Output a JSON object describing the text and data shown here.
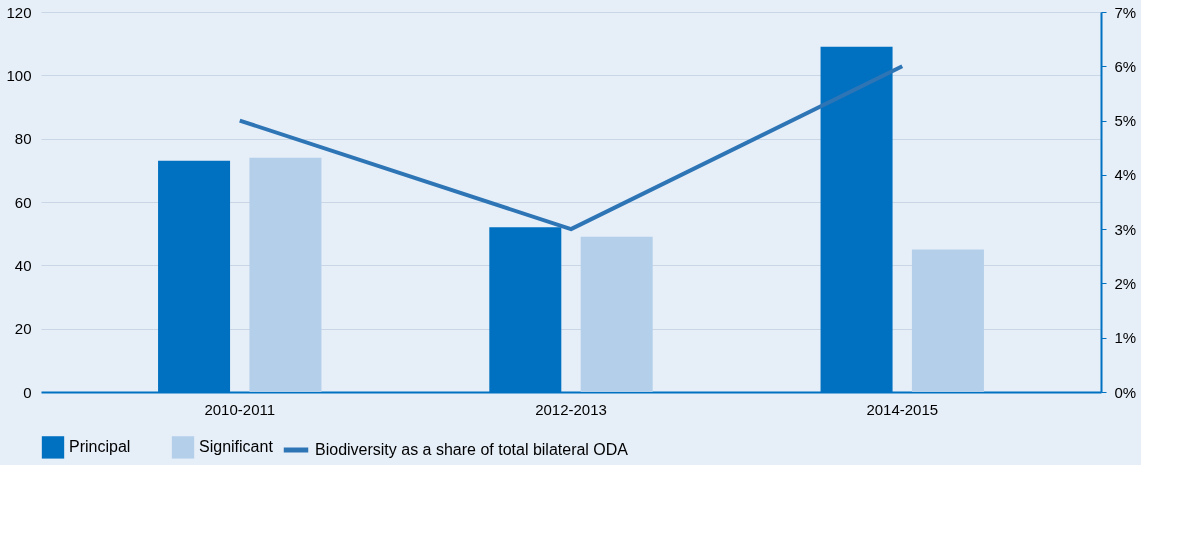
{
  "chart_data": {
    "type": "bar",
    "categories": [
      "2010-2011",
      "2012-2013",
      "2014-2015"
    ],
    "series": [
      {
        "name": "Principal",
        "color": "#0070c0",
        "values": [
          73,
          52,
          109
        ]
      },
      {
        "name": "Significant",
        "color": "#b4cfea",
        "values": [
          74,
          49,
          45
        ]
      },
      {
        "name": "Biodiversity as a share of total bilateral ODA",
        "type": "line",
        "axis": "y2",
        "color": "#2e75b6",
        "values": [
          5,
          3,
          6
        ]
      }
    ],
    "ylim": [
      0,
      120
    ],
    "yticks": [
      0,
      20,
      40,
      60,
      80,
      100,
      120
    ],
    "y2lim": [
      0,
      7
    ],
    "y2ticks": [
      {
        "value": 0,
        "label": "0%"
      },
      {
        "value": 1,
        "label": "1%"
      },
      {
        "value": 2,
        "label": "2%"
      },
      {
        "value": 3,
        "label": "3%"
      },
      {
        "value": 4,
        "label": "4%"
      },
      {
        "value": 5,
        "label": "5%"
      },
      {
        "value": 6,
        "label": "6%"
      },
      {
        "value": 7,
        "label": "7%"
      }
    ],
    "grid": "y",
    "legend": "bottom"
  }
}
